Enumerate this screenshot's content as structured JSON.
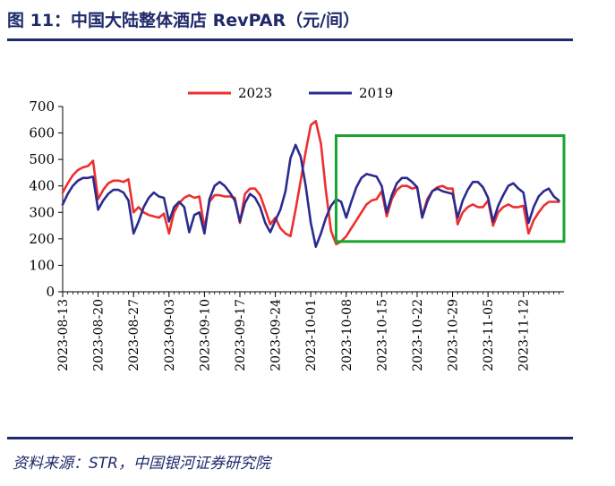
{
  "figure": {
    "title": "图 11：中国大陆整体酒店 RevPAR（元/间）",
    "source": "资料来源：STR，中国银河证券研究院"
  },
  "chart_data": {
    "type": "line",
    "xlabel": "",
    "ylabel": "",
    "ylim": [
      0,
      700
    ],
    "yticks": [
      "0",
      "100",
      "200",
      "300",
      "400",
      "500",
      "600",
      "700"
    ],
    "grid": false,
    "legend_position": "top-center",
    "x_tick_labels": [
      "2023-08-13",
      "2023-08-20",
      "2023-08-27",
      "2023-09-03",
      "2023-09-10",
      "2023-09-17",
      "2023-09-24",
      "2023-10-01",
      "2023-10-08",
      "2023-10-15",
      "2023-10-22",
      "2023-10-29",
      "2023-11-05",
      "2023-11-12"
    ],
    "x": [
      "2023-08-13",
      "2023-08-14",
      "2023-08-15",
      "2023-08-16",
      "2023-08-17",
      "2023-08-18",
      "2023-08-19",
      "2023-08-20",
      "2023-08-21",
      "2023-08-22",
      "2023-08-23",
      "2023-08-24",
      "2023-08-25",
      "2023-08-26",
      "2023-08-27",
      "2023-08-28",
      "2023-08-29",
      "2023-08-30",
      "2023-08-31",
      "2023-09-01",
      "2023-09-02",
      "2023-09-03",
      "2023-09-04",
      "2023-09-05",
      "2023-09-06",
      "2023-09-07",
      "2023-09-08",
      "2023-09-09",
      "2023-09-10",
      "2023-09-11",
      "2023-09-12",
      "2023-09-13",
      "2023-09-14",
      "2023-09-15",
      "2023-09-16",
      "2023-09-17",
      "2023-09-18",
      "2023-09-19",
      "2023-09-20",
      "2023-09-21",
      "2023-09-22",
      "2023-09-23",
      "2023-09-24",
      "2023-09-25",
      "2023-09-26",
      "2023-09-27",
      "2023-09-28",
      "2023-09-29",
      "2023-09-30",
      "2023-10-01",
      "2023-10-02",
      "2023-10-03",
      "2023-10-04",
      "2023-10-05",
      "2023-10-06",
      "2023-10-07",
      "2023-10-08",
      "2023-10-09",
      "2023-10-10",
      "2023-10-11",
      "2023-10-12",
      "2023-10-13",
      "2023-10-14",
      "2023-10-15",
      "2023-10-16",
      "2023-10-17",
      "2023-10-18",
      "2023-10-19",
      "2023-10-20",
      "2023-10-21",
      "2023-10-22",
      "2023-10-23",
      "2023-10-24",
      "2023-10-25",
      "2023-10-26",
      "2023-10-27",
      "2023-10-28",
      "2023-10-29",
      "2023-10-30",
      "2023-10-31",
      "2023-11-01",
      "2023-11-02",
      "2023-11-03",
      "2023-11-04",
      "2023-11-05",
      "2023-11-06",
      "2023-11-07",
      "2023-11-08",
      "2023-11-09",
      "2023-11-10",
      "2023-11-11",
      "2023-11-12",
      "2023-11-13",
      "2023-11-14",
      "2023-11-15",
      "2023-11-16",
      "2023-11-17",
      "2023-11-18",
      "2023-11-19"
    ],
    "series": [
      {
        "name": "2023",
        "color": "#ee2f2f",
        "values": [
          375,
          410,
          440,
          460,
          470,
          475,
          495,
          350,
          385,
          410,
          420,
          420,
          415,
          425,
          300,
          320,
          300,
          290,
          285,
          280,
          295,
          220,
          300,
          335,
          355,
          365,
          355,
          360,
          240,
          340,
          365,
          365,
          360,
          360,
          355,
          260,
          370,
          390,
          390,
          365,
          310,
          255,
          280,
          240,
          220,
          210,
          310,
          420,
          530,
          630,
          645,
          560,
          380,
          230,
          180,
          190,
          210,
          240,
          270,
          300,
          330,
          345,
          350,
          380,
          285,
          350,
          385,
          400,
          400,
          390,
          395,
          285,
          350,
          380,
          395,
          400,
          390,
          390,
          255,
          300,
          320,
          330,
          320,
          320,
          345,
          250,
          300,
          320,
          330,
          320,
          320,
          325,
          220,
          270,
          300,
          325,
          340,
          340,
          340
        ]
      },
      {
        "name": "2019",
        "color": "#2b2b8f",
        "values": [
          330,
          370,
          400,
          420,
          430,
          430,
          435,
          310,
          345,
          370,
          385,
          385,
          375,
          345,
          220,
          265,
          320,
          355,
          375,
          360,
          355,
          265,
          320,
          340,
          320,
          225,
          290,
          300,
          220,
          350,
          400,
          415,
          400,
          375,
          345,
          265,
          335,
          370,
          355,
          320,
          260,
          225,
          270,
          310,
          380,
          505,
          555,
          510,
          400,
          260,
          170,
          220,
          280,
          325,
          350,
          340,
          280,
          340,
          395,
          430,
          445,
          440,
          435,
          400,
          300,
          365,
          410,
          430,
          430,
          415,
          395,
          280,
          340,
          380,
          390,
          380,
          375,
          370,
          280,
          345,
          385,
          415,
          415,
          395,
          355,
          265,
          325,
          365,
          400,
          410,
          390,
          375,
          260,
          320,
          360,
          380,
          390,
          360,
          345
        ]
      }
    ],
    "annotation": {
      "type": "highlight-box",
      "color": "#1aa52e",
      "x_from": "2023-10-06",
      "x_to": "2023-11-20",
      "y_from": 190,
      "y_to": 590
    }
  }
}
